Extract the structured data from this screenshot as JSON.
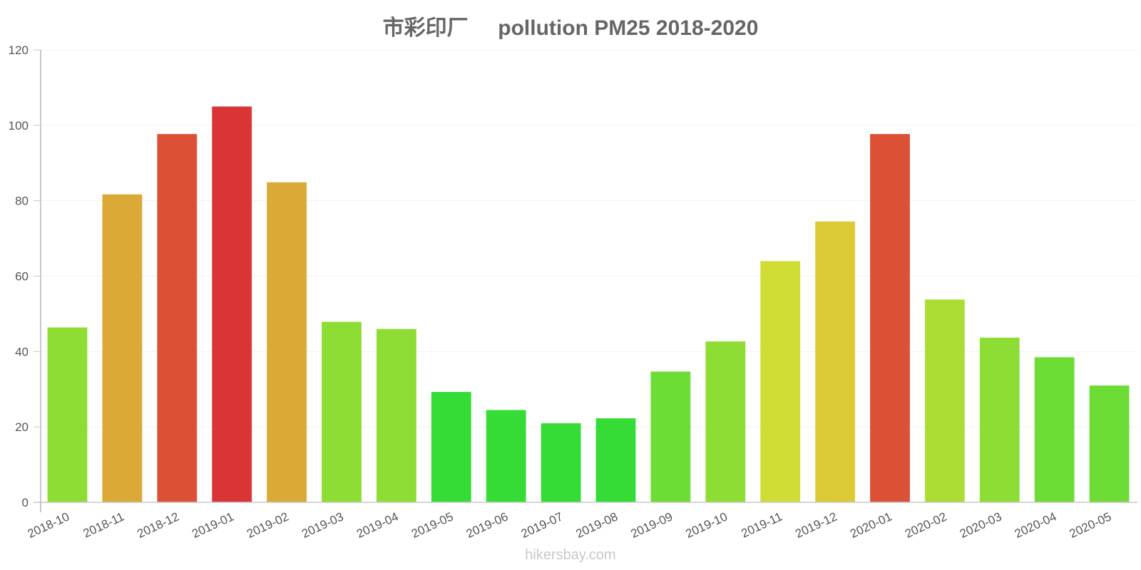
{
  "chart_data": {
    "type": "bar",
    "title": "市彩印厂     pollution PM25 2018-2020",
    "xlabel": "",
    "ylabel": "",
    "ylim": [
      0,
      120
    ],
    "yticks": [
      0,
      20,
      40,
      60,
      80,
      100,
      120
    ],
    "grid": true,
    "legend": null,
    "categories": [
      "2018-10",
      "2018-11",
      "2018-12",
      "2019-01",
      "2019-02",
      "2019-03",
      "2019-04",
      "2019-05",
      "2019-06",
      "2019-07",
      "2019-08",
      "2019-09",
      "2019-10",
      "2019-11",
      "2019-12",
      "2020-01",
      "2020-02",
      "2020-03",
      "2020-04",
      "2020-05"
    ],
    "values": [
      46.3,
      81.6,
      97.6,
      104.9,
      84.8,
      47.8,
      45.9,
      29.2,
      24.4,
      20.9,
      22.2,
      34.6,
      42.6,
      63.9,
      74.4,
      97.6,
      53.7,
      43.6,
      38.4,
      30.9
    ],
    "colors": [
      "#8ddd35",
      "#dba935",
      "#dc5035",
      "#da3535",
      "#dba935",
      "#8ddd35",
      "#8ddd35",
      "#35dc35",
      "#35dc35",
      "#35dc35",
      "#35dc35",
      "#6ddd35",
      "#8ddd35",
      "#cfdd35",
      "#dbca35",
      "#dc5035",
      "#acdd35",
      "#8ddd35",
      "#6ddd35",
      "#6ddd35"
    ]
  },
  "watermark": "hikersbay.com"
}
